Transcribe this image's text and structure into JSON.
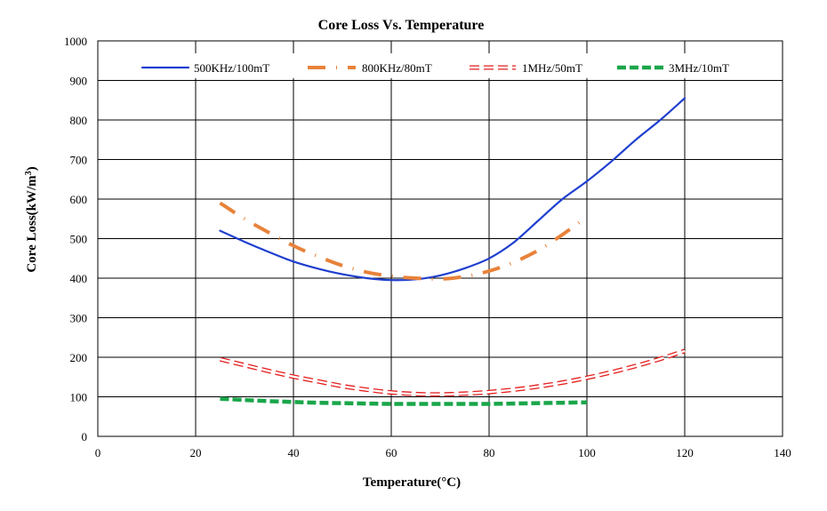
{
  "chart_data": {
    "type": "line",
    "title": "Core Loss Vs. Temperature",
    "xlabel": "Temperature(°C)",
    "ylabel_main": "Core Loss(kW/m",
    "ylabel_sup": "3",
    "ylabel_close": ")",
    "xlim": [
      0,
      140
    ],
    "ylim": [
      0,
      1000
    ],
    "xticks": [
      0,
      20,
      40,
      60,
      80,
      100,
      120,
      140
    ],
    "yticks": [
      0,
      100,
      200,
      300,
      400,
      500,
      600,
      700,
      800,
      900,
      1000
    ],
    "grid": true,
    "legend_position": "top",
    "series": [
      {
        "name": "500KHz/100mT",
        "color": "#1f3fcf",
        "style": "solid",
        "x": [
          25,
          30,
          35,
          40,
          45,
          50,
          55,
          60,
          65,
          70,
          75,
          80,
          85,
          90,
          95,
          100,
          105,
          110,
          115,
          120
        ],
        "y": [
          520,
          492,
          466,
          442,
          424,
          410,
          400,
          395,
          397,
          407,
          425,
          450,
          490,
          545,
          600,
          645,
          695,
          750,
          800,
          855
        ]
      },
      {
        "name": "800KHz/80mT",
        "color": "#e8823a",
        "style": "dash-dot",
        "x": [
          25,
          30,
          35,
          40,
          45,
          50,
          55,
          60,
          65,
          70,
          75,
          80,
          85,
          90,
          95,
          100
        ],
        "y": [
          590,
          550,
          515,
          482,
          455,
          432,
          415,
          405,
          400,
          398,
          404,
          418,
          440,
          470,
          510,
          555
        ]
      },
      {
        "name": "1MHz/50mT",
        "color": "#e41e1e",
        "style": "hollow-dash",
        "x": [
          25,
          30,
          35,
          40,
          45,
          50,
          55,
          60,
          65,
          70,
          75,
          80,
          85,
          90,
          95,
          100,
          105,
          110,
          115,
          120
        ],
        "y": [
          195,
          180,
          165,
          151,
          139,
          127,
          118,
          111,
          107,
          106,
          108,
          112,
          118,
          126,
          136,
          148,
          162,
          178,
          196,
          216
        ]
      },
      {
        "name": "3MHz/10mT",
        "color": "#1aa64a",
        "style": "dashed",
        "x": [
          25,
          30,
          35,
          40,
          45,
          50,
          55,
          60,
          65,
          70,
          75,
          80,
          85,
          90,
          95,
          100
        ],
        "y": [
          95,
          92,
          89,
          87,
          85,
          84,
          83,
          82,
          82,
          82,
          82,
          82,
          83,
          84,
          85,
          86
        ]
      }
    ]
  }
}
